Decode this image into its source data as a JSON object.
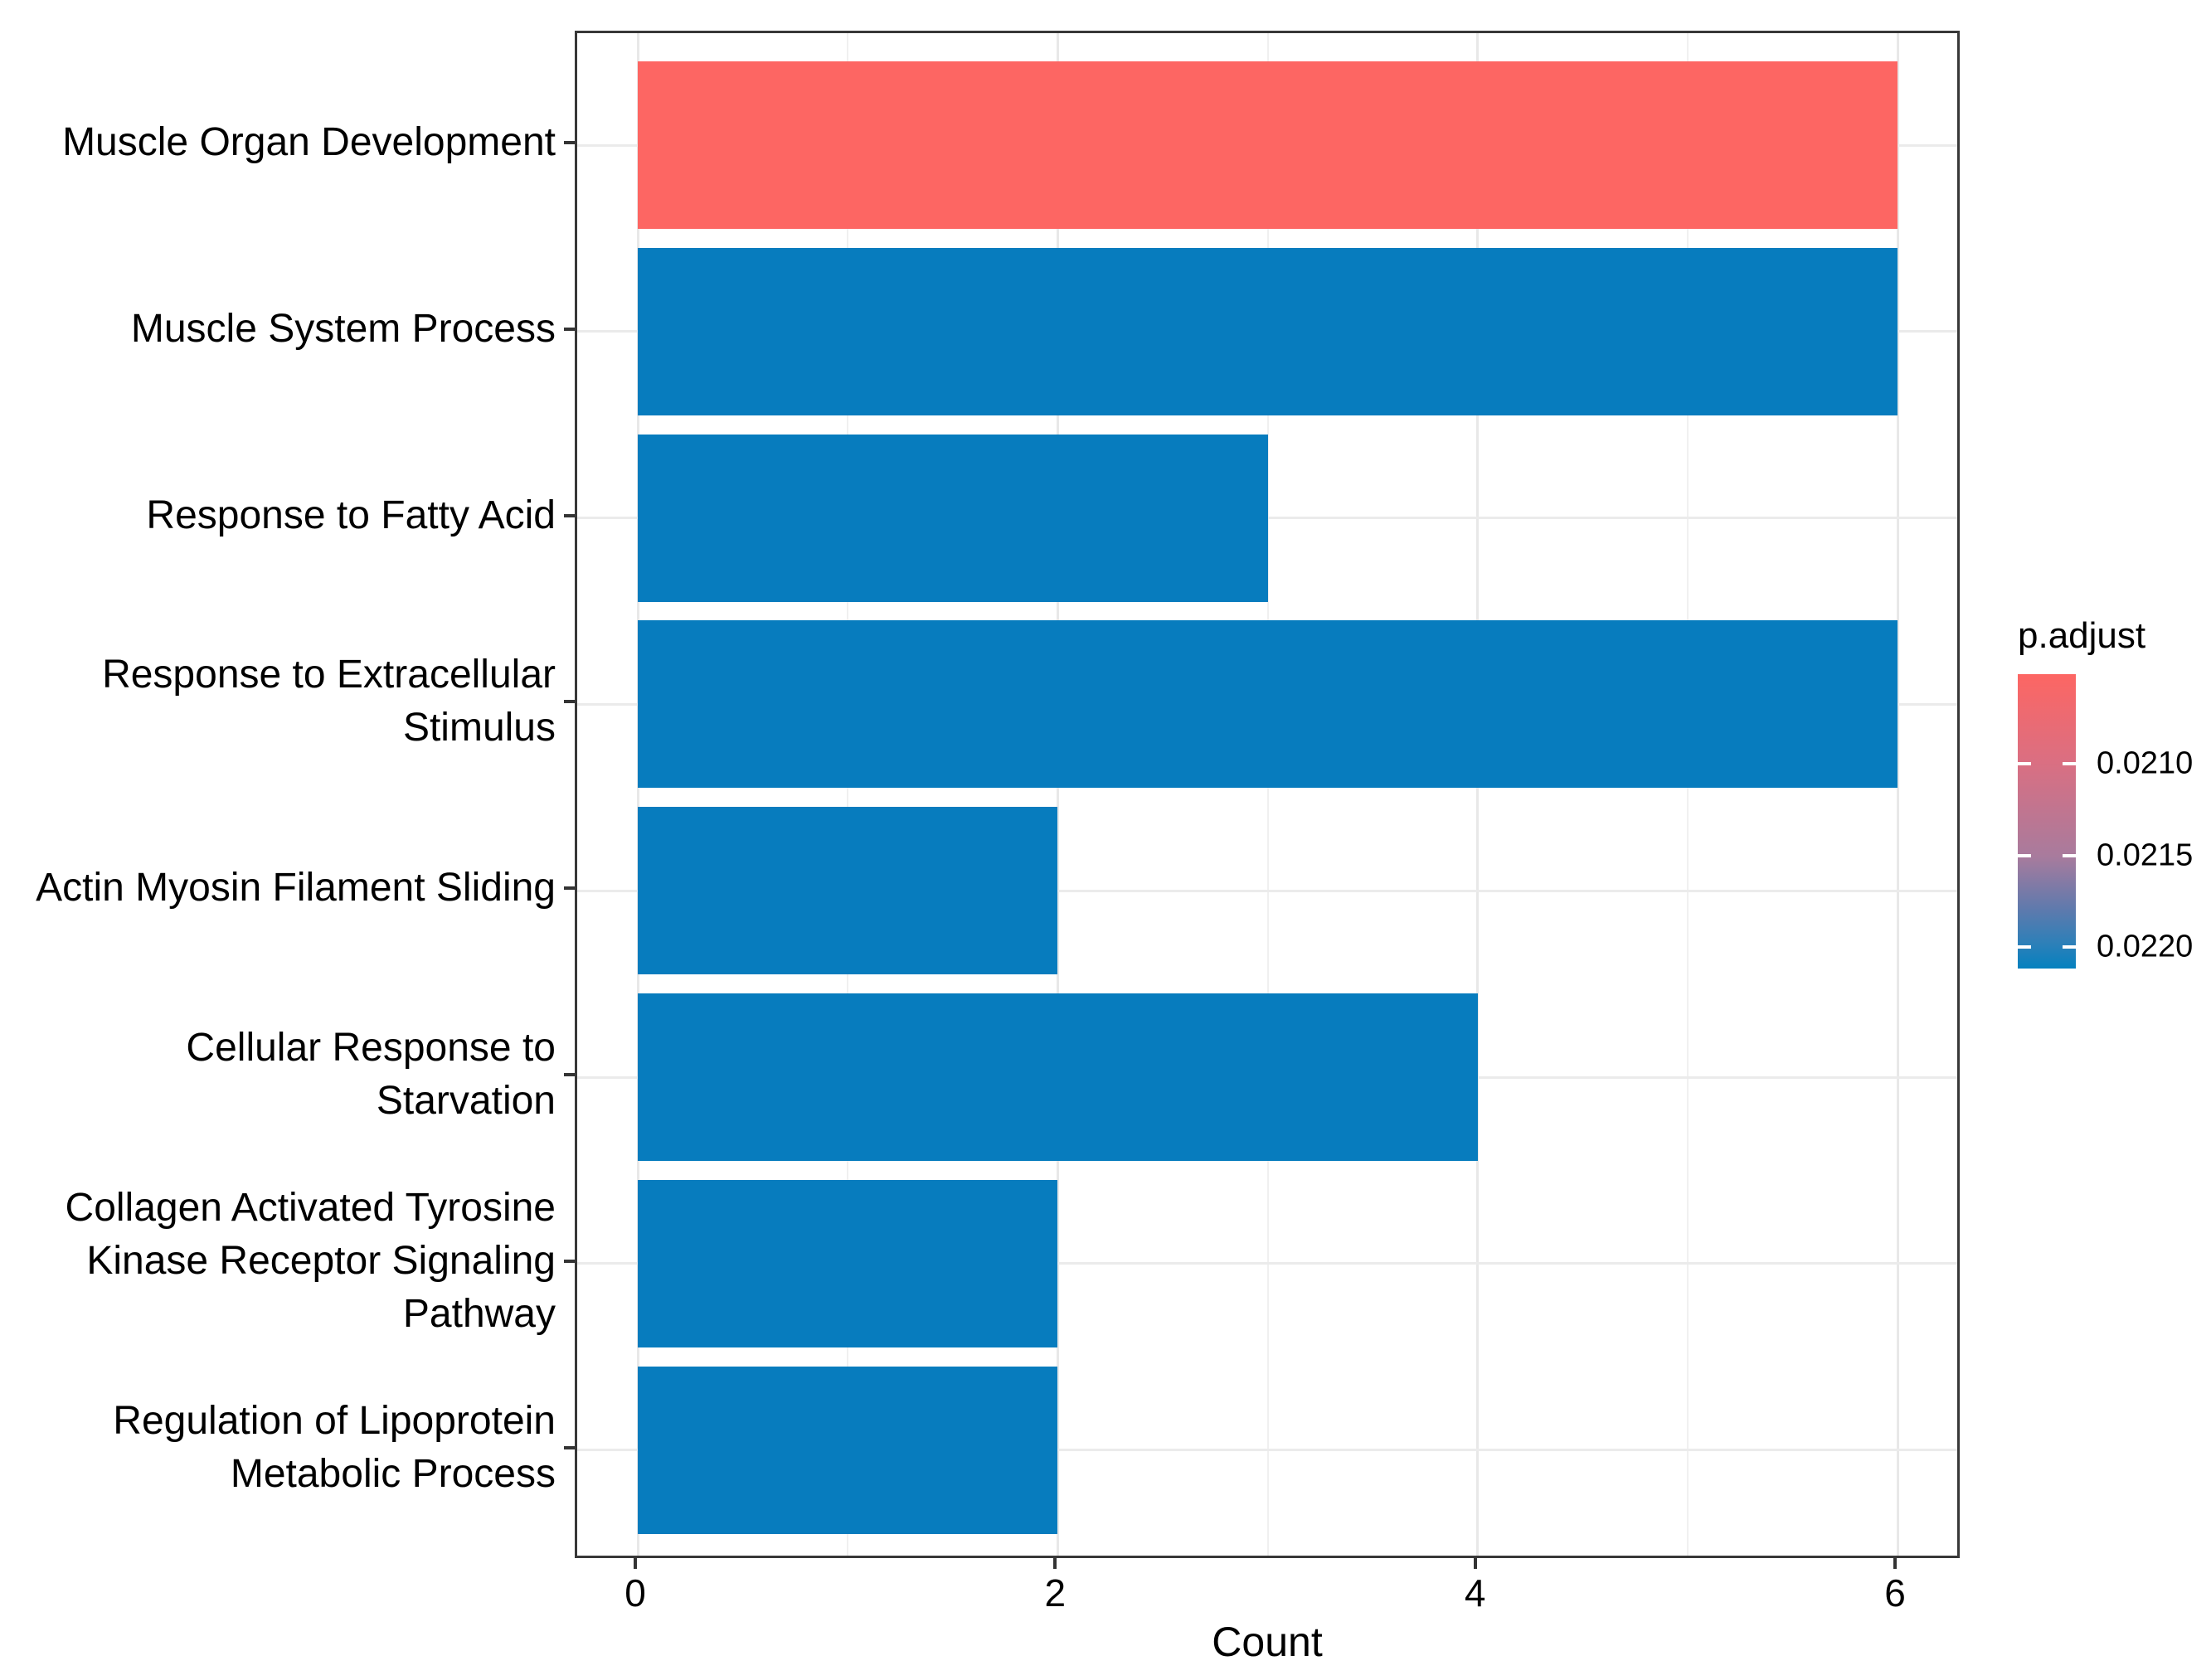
{
  "chart_data": {
    "type": "bar",
    "orientation": "horizontal",
    "title": "",
    "xlabel": "Count",
    "ylabel": "",
    "categories": [
      "Muscle Organ Development",
      "Muscle System Process",
      "Response to Fatty Acid",
      "Response to Extracellular\nStimulus",
      "Actin Myosin Filament Sliding",
      "Cellular Response to\nStarvation",
      "Collagen Activated Tyrosine\nKinase Receptor Signaling\nPathway",
      "Regulation of Lipoprotein\nMetabolic Process"
    ],
    "values": [
      6,
      6,
      3,
      6,
      2,
      4,
      2,
      2
    ],
    "bar_colors": [
      "#FD6663",
      "#077CBE",
      "#077CBE",
      "#077CBE",
      "#077CBE",
      "#077CBE",
      "#077CBE",
      "#077CBE"
    ],
    "x_ticks": [
      0,
      2,
      4,
      6
    ],
    "x_minor_gridlines": [
      1,
      3,
      5
    ],
    "xlim": [
      -0.3,
      6.3
    ],
    "grid": true,
    "legend": {
      "title": "p.adjust",
      "position": "right",
      "tick_labels": [
        "0.0210",
        "0.0215",
        "0.0220"
      ],
      "top_color": "#FD6663",
      "mid_color": "#A87B9D",
      "bottom_color": "#0581BF"
    }
  }
}
